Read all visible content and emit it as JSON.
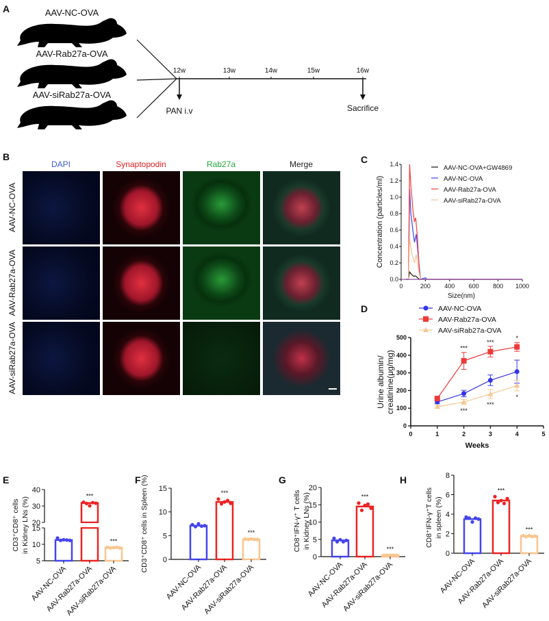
{
  "panelA": {
    "label": "A",
    "groups": [
      "AAV-NC-OVA",
      "AAV-Rab27a-OVA",
      "AAV-siRab27a-OVA"
    ],
    "timepoints": [
      "12w",
      "13w",
      "14w",
      "15w",
      "16w"
    ],
    "events": {
      "start": "PAN i.v",
      "end": "Sacrifice"
    }
  },
  "panelB": {
    "label": "B",
    "columns": [
      {
        "name": "DAPI",
        "color": "#3a5bd9"
      },
      {
        "name": "Synaptopodin",
        "color": "#e02020"
      },
      {
        "name": "Rab27a",
        "color": "#1faa3a"
      },
      {
        "name": "Merge",
        "color": "#222222"
      }
    ],
    "rows": [
      "AAV-NC-OVA",
      "AAV-Rab27a-OVA",
      "AAV-siRab27a-OVA"
    ]
  },
  "chart_data": [
    {
      "panel": "C",
      "type": "line",
      "xlabel": "Size(nm)",
      "ylabel": "Concentration (particles/ml)",
      "xlim": [
        0,
        1000
      ],
      "ylim": [
        0,
        1.4
      ],
      "xticks": [
        "0",
        "200",
        "400",
        "600",
        "800",
        "1000"
      ],
      "yticks": [
        "0.0",
        "0.2",
        "0.4",
        "0.6",
        "0.8",
        "1.0",
        "1.2",
        "1.4"
      ],
      "legend": "top-right",
      "series": [
        {
          "name": "AAV-NC-OVA+GW4869",
          "color": "#222222",
          "points": [
            [
              40,
              0
            ],
            [
              60,
              0
            ],
            [
              70,
              0.09
            ],
            [
              80,
              0.07
            ],
            [
              100,
              0.04
            ],
            [
              120,
              0.04
            ],
            [
              150,
              0
            ],
            [
              1000,
              0
            ]
          ]
        },
        {
          "name": "AAV-NC-OVA",
          "color": "#4a4ef0",
          "points": [
            [
              40,
              0
            ],
            [
              60,
              0
            ],
            [
              70,
              1.1
            ],
            [
              80,
              0.8
            ],
            [
              95,
              0.62
            ],
            [
              110,
              0.45
            ],
            [
              125,
              0.55
            ],
            [
              140,
              0.3
            ],
            [
              160,
              0
            ],
            [
              200,
              0.02
            ],
            [
              215,
              0
            ],
            [
              1000,
              0
            ]
          ]
        },
        {
          "name": "AAV-Rab27a-OVA",
          "color": "#f04a4a",
          "points": [
            [
              40,
              0
            ],
            [
              60,
              0
            ],
            [
              70,
              1.4
            ],
            [
              80,
              1.15
            ],
            [
              100,
              0.8
            ],
            [
              110,
              0.7
            ],
            [
              120,
              0.75
            ],
            [
              135,
              0.5
            ],
            [
              150,
              0.1
            ],
            [
              160,
              0
            ],
            [
              1000,
              0
            ]
          ]
        },
        {
          "name": "AAV-siRab27a-OVA",
          "color": "#f7c79a",
          "points": [
            [
              40,
              0
            ],
            [
              60,
              0
            ],
            [
              70,
              0.5
            ],
            [
              90,
              0.3
            ],
            [
              110,
              0.2
            ],
            [
              125,
              0.3
            ],
            [
              145,
              0.1
            ],
            [
              160,
              0
            ],
            [
              1000,
              0
            ]
          ]
        }
      ]
    },
    {
      "panel": "D",
      "type": "line",
      "xlabel": "Weeks",
      "ylabel": "Urine albumin/ creatinine(μg/mg)",
      "ylabel_lines": [
        "Urine albumin/",
        "creatinine(μg/mg)"
      ],
      "xlim": [
        0,
        5
      ],
      "ylim": [
        0,
        500
      ],
      "xticks": [
        "0",
        "1",
        "2",
        "3",
        "4",
        "5"
      ],
      "yticks": [
        "0",
        "100",
        "200",
        "300",
        "400",
        "500"
      ],
      "legend": "top-left",
      "x": [
        1,
        2,
        3,
        4
      ],
      "series": [
        {
          "name": "AAV-NC-OVA",
          "color": "#3434e8",
          "marker": "circle",
          "values": [
            135,
            183,
            258,
            307
          ],
          "errors": [
            10,
            18,
            30,
            65
          ]
        },
        {
          "name": "AAV-Rab27a-OVA",
          "color": "#ee3a3a",
          "marker": "square",
          "values": [
            155,
            368,
            420,
            447
          ],
          "errors": [
            10,
            48,
            30,
            25
          ]
        },
        {
          "name": "AAV-siRab27a-OVA",
          "color": "#f7c690",
          "marker": "triangle",
          "values": [
            108,
            135,
            180,
            228
          ],
          "errors": [
            8,
            15,
            25,
            30
          ]
        }
      ],
      "annotations_above": [
        "",
        "***",
        "***",
        "*"
      ],
      "annotations_below": [
        "",
        "***",
        "***",
        "*"
      ]
    },
    {
      "panel": "E",
      "type": "bar",
      "ylabel_lines": [
        "CD3⁺CD8⁺ cells",
        "in Kidney LNs (%)"
      ],
      "categories": [
        "AAV-NC-OVA",
        "AAV-Rab27a-OVA",
        "AAV-siRab27a-OVA"
      ],
      "values": [
        11.3,
        31.8,
        9.0
      ],
      "points": [
        [
          11.9,
          11.2,
          11.4,
          11.3,
          11.2
        ],
        [
          32.3,
          31.5,
          30.1,
          32.0,
          31.7
        ],
        [
          9.1,
          8.9,
          9.0,
          9.1,
          8.9
        ]
      ],
      "significance": [
        "",
        "***",
        "***"
      ],
      "axis_break": [
        15,
        20
      ],
      "ylim": [
        5,
        40
      ],
      "yticks": [
        "5",
        "10",
        "15",
        "20",
        "30",
        "40"
      ],
      "colors": [
        "#4444ee",
        "#ee2222",
        "#f9c48e"
      ]
    },
    {
      "panel": "F",
      "type": "bar",
      "ylabel_lines": [
        "CD3⁺CD8⁺ cells in Spleen (%)"
      ],
      "categories": [
        "AAV-NC-OVA",
        "AAV-Rab27a-OVA",
        "AAV-siRab27a-OVA"
      ],
      "values": [
        7.1,
        12.1,
        4.2
      ],
      "points": [
        [
          7.3,
          6.9,
          7.5,
          7.0,
          7.1
        ],
        [
          12.7,
          11.7,
          12.1,
          12.4,
          11.8
        ],
        [
          4.3,
          4.2,
          4.3,
          4.2,
          4.2
        ]
      ],
      "significance": [
        "",
        "***",
        "***"
      ],
      "ylim": [
        0,
        15
      ],
      "yticks": [
        "0",
        "5",
        "10",
        "15"
      ],
      "colors": [
        "#4444ee",
        "#ee2222",
        "#f9c48e"
      ]
    },
    {
      "panel": "G",
      "type": "bar",
      "ylabel_lines": [
        "CD8⁺IFN-γ⁺ T cells",
        "in Kidney LNs (%)"
      ],
      "categories": [
        "AAV-NC-OVA",
        "AAV-Rab27a-OVA",
        "AAV-siRab27a-OVA"
      ],
      "values": [
        4.7,
        14.5,
        0.4
      ],
      "points": [
        [
          5.3,
          4.3,
          4.9,
          4.3,
          4.7
        ],
        [
          15.5,
          13.4,
          14.8,
          15.2,
          14.0
        ],
        [
          0.4,
          0.4,
          0.4,
          0.4,
          0.4
        ]
      ],
      "significance": [
        "",
        "***",
        "***"
      ],
      "ylim": [
        0,
        20
      ],
      "yticks": [
        "0",
        "5",
        "10",
        "15",
        "20"
      ],
      "colors": [
        "#4444ee",
        "#ee2222",
        "#f9c48e"
      ]
    },
    {
      "panel": "H",
      "type": "bar",
      "ylabel_lines": [
        "CD8⁺IFN-γ⁺T cells",
        "in spleen (%)"
      ],
      "categories": [
        "AAV-NC-OVA",
        "AAV-Rab27a-OVA",
        "AAV-siRab27a-OVA"
      ],
      "values": [
        3.5,
        5.4,
        1.75
      ],
      "points": [
        [
          3.7,
          3.6,
          3.2,
          3.6,
          3.5
        ],
        [
          5.8,
          5.2,
          5.4,
          5.1,
          5.6
        ],
        [
          1.8,
          1.7,
          1.8,
          1.7,
          1.75
        ]
      ],
      "significance": [
        "",
        "***",
        "***"
      ],
      "ylim": [
        0,
        8
      ],
      "yticks": [
        "0",
        "2",
        "4",
        "6",
        "8"
      ],
      "colors": [
        "#4444ee",
        "#ee2222",
        "#f9c48e"
      ]
    }
  ]
}
